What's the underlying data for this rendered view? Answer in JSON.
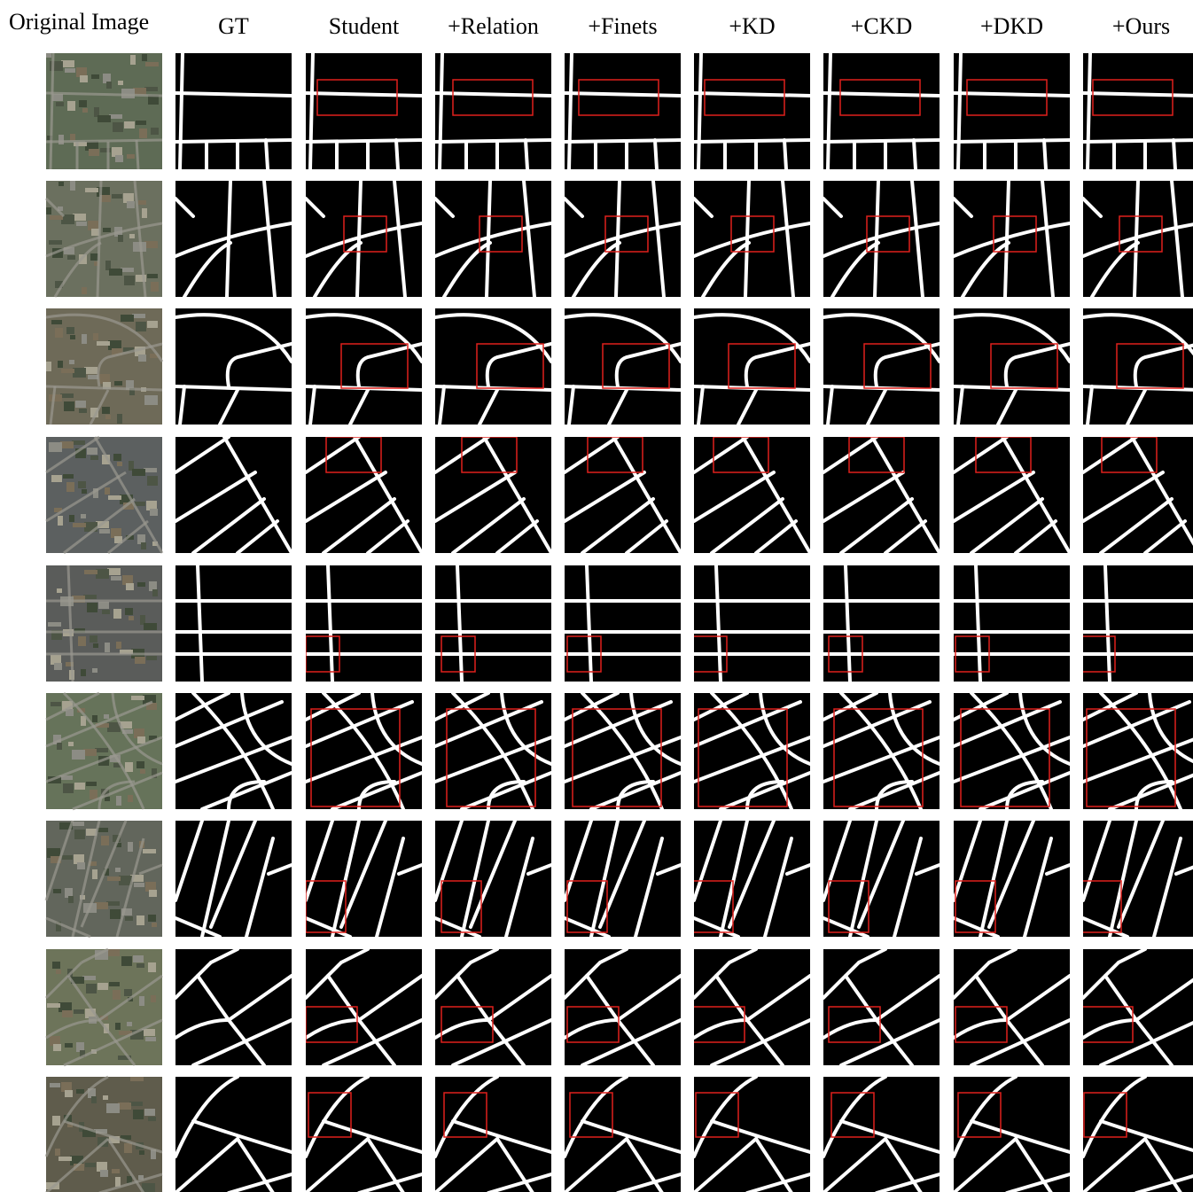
{
  "columns": [
    "Original Image",
    "GT",
    "Student",
    "+Relation",
    "+Finets",
    "+KD",
    "+CKD",
    "+DKD",
    "+Ours"
  ]
}
